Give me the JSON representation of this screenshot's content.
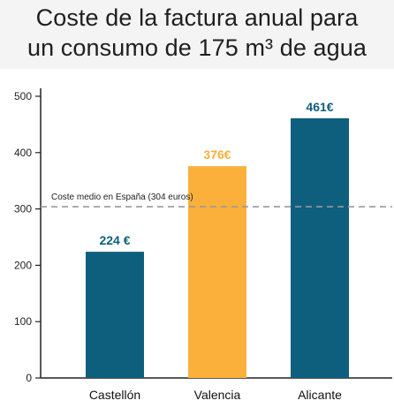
{
  "title": {
    "line1": "Coste de la factura anual para",
    "line2": "un consumo de 175 m³ de agua"
  },
  "chart_data": {
    "type": "bar",
    "categories": [
      "Castellón",
      "Valencia",
      "Alicante"
    ],
    "values": [
      224,
      376,
      461
    ],
    "value_labels": [
      "224 €",
      "376€",
      "461€"
    ],
    "bar_colors": [
      "#0e5f7e",
      "#fbb03b",
      "#0e5f7e"
    ],
    "label_colors": [
      "#0e5f7e",
      "#fbb03b",
      "#0e5f7e"
    ],
    "ylim": [
      0,
      500
    ],
    "yticks": [
      0,
      100,
      200,
      300,
      400,
      500
    ],
    "reference_line": {
      "value": 304,
      "label": "Coste medio en España (304 euros)",
      "color": "#999999"
    },
    "grid": false
  }
}
